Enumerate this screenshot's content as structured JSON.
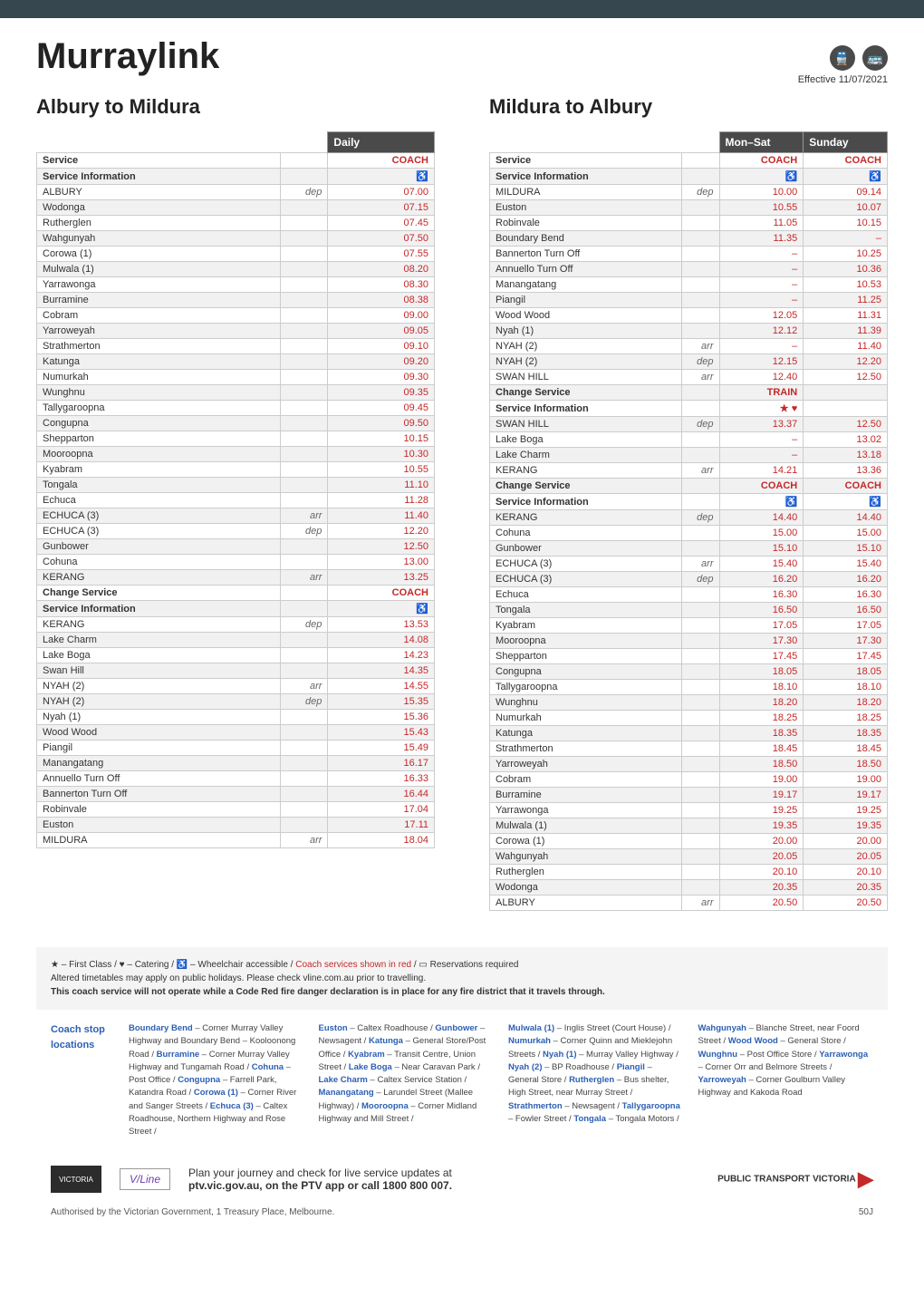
{
  "header": {
    "title": "Murraylink",
    "effective": "Effective 11/07/2021"
  },
  "section_a": {
    "title": "Albury to Mildura",
    "day_headers": [
      "Daily"
    ],
    "rows": [
      {
        "stop": "Service",
        "tag": "",
        "times": [
          "COACH"
        ],
        "bold": true
      },
      {
        "stop": "Service Information",
        "tag": "",
        "times": [
          "♿"
        ],
        "bold": true
      },
      {
        "stop": "ALBURY",
        "tag": "dep",
        "times": [
          "07.00"
        ]
      },
      {
        "stop": "Wodonga",
        "tag": "",
        "times": [
          "07.15"
        ]
      },
      {
        "stop": "Rutherglen",
        "tag": "",
        "times": [
          "07.45"
        ]
      },
      {
        "stop": "Wahgunyah",
        "tag": "",
        "times": [
          "07.50"
        ]
      },
      {
        "stop": "Corowa (1)",
        "tag": "",
        "times": [
          "07.55"
        ]
      },
      {
        "stop": "Mulwala (1)",
        "tag": "",
        "times": [
          "08.20"
        ]
      },
      {
        "stop": "Yarrawonga",
        "tag": "",
        "times": [
          "08.30"
        ]
      },
      {
        "stop": "Burramine",
        "tag": "",
        "times": [
          "08.38"
        ]
      },
      {
        "stop": "Cobram",
        "tag": "",
        "times": [
          "09.00"
        ]
      },
      {
        "stop": "Yarroweyah",
        "tag": "",
        "times": [
          "09.05"
        ]
      },
      {
        "stop": "Strathmerton",
        "tag": "",
        "times": [
          "09.10"
        ]
      },
      {
        "stop": "Katunga",
        "tag": "",
        "times": [
          "09.20"
        ]
      },
      {
        "stop": "Numurkah",
        "tag": "",
        "times": [
          "09.30"
        ]
      },
      {
        "stop": "Wunghnu",
        "tag": "",
        "times": [
          "09.35"
        ]
      },
      {
        "stop": "Tallygaroopna",
        "tag": "",
        "times": [
          "09.45"
        ]
      },
      {
        "stop": "Congupna",
        "tag": "",
        "times": [
          "09.50"
        ]
      },
      {
        "stop": "Shepparton",
        "tag": "",
        "times": [
          "10.15"
        ]
      },
      {
        "stop": "Mooroopna",
        "tag": "",
        "times": [
          "10.30"
        ]
      },
      {
        "stop": "Kyabram",
        "tag": "",
        "times": [
          "10.55"
        ]
      },
      {
        "stop": "Tongala",
        "tag": "",
        "times": [
          "11.10"
        ]
      },
      {
        "stop": "Echuca",
        "tag": "",
        "times": [
          "11.28"
        ]
      },
      {
        "stop": "ECHUCA (3)",
        "tag": "arr",
        "times": [
          "11.40"
        ]
      },
      {
        "stop": "ECHUCA (3)",
        "tag": "dep",
        "times": [
          "12.20"
        ]
      },
      {
        "stop": "Gunbower",
        "tag": "",
        "times": [
          "12.50"
        ]
      },
      {
        "stop": "Cohuna",
        "tag": "",
        "times": [
          "13.00"
        ]
      },
      {
        "stop": "KERANG",
        "tag": "arr",
        "times": [
          "13.25"
        ]
      },
      {
        "stop": "Change Service",
        "tag": "",
        "times": [
          "COACH"
        ],
        "bold": true
      },
      {
        "stop": "Service Information",
        "tag": "",
        "times": [
          "♿"
        ],
        "bold": true
      },
      {
        "stop": "KERANG",
        "tag": "dep",
        "times": [
          "13.53"
        ]
      },
      {
        "stop": "Lake Charm",
        "tag": "",
        "times": [
          "14.08"
        ]
      },
      {
        "stop": "Lake Boga",
        "tag": "",
        "times": [
          "14.23"
        ]
      },
      {
        "stop": "Swan Hill",
        "tag": "",
        "times": [
          "14.35"
        ]
      },
      {
        "stop": "NYAH (2)",
        "tag": "arr",
        "times": [
          "14.55"
        ]
      },
      {
        "stop": "NYAH (2)",
        "tag": "dep",
        "times": [
          "15.35"
        ]
      },
      {
        "stop": "Nyah (1)",
        "tag": "",
        "times": [
          "15.36"
        ]
      },
      {
        "stop": "Wood Wood",
        "tag": "",
        "times": [
          "15.43"
        ]
      },
      {
        "stop": "Piangil",
        "tag": "",
        "times": [
          "15.49"
        ]
      },
      {
        "stop": "Manangatang",
        "tag": "",
        "times": [
          "16.17"
        ]
      },
      {
        "stop": "Annuello Turn Off",
        "tag": "",
        "times": [
          "16.33"
        ]
      },
      {
        "stop": "Bannerton Turn Off",
        "tag": "",
        "times": [
          "16.44"
        ]
      },
      {
        "stop": "Robinvale",
        "tag": "",
        "times": [
          "17.04"
        ]
      },
      {
        "stop": "Euston",
        "tag": "",
        "times": [
          "17.11"
        ]
      },
      {
        "stop": "MILDURA",
        "tag": "arr",
        "times": [
          "18.04"
        ]
      }
    ]
  },
  "section_b": {
    "title": "Mildura to Albury",
    "day_headers": [
      "Mon–Sat",
      "Sunday"
    ],
    "rows": [
      {
        "stop": "Service",
        "tag": "",
        "times": [
          "COACH",
          "COACH"
        ],
        "bold": true
      },
      {
        "stop": "Service Information",
        "tag": "",
        "times": [
          "♿",
          "♿"
        ],
        "bold": true
      },
      {
        "stop": "MILDURA",
        "tag": "dep",
        "times": [
          "10.00",
          "09.14"
        ]
      },
      {
        "stop": "Euston",
        "tag": "",
        "times": [
          "10.55",
          "10.07"
        ]
      },
      {
        "stop": "Robinvale",
        "tag": "",
        "times": [
          "11.05",
          "10.15"
        ]
      },
      {
        "stop": "Boundary Bend",
        "tag": "",
        "times": [
          "11.35",
          "–"
        ]
      },
      {
        "stop": "Bannerton Turn Off",
        "tag": "",
        "times": [
          "–",
          "10.25"
        ]
      },
      {
        "stop": "Annuello Turn Off",
        "tag": "",
        "times": [
          "–",
          "10.36"
        ]
      },
      {
        "stop": "Manangatang",
        "tag": "",
        "times": [
          "–",
          "10.53"
        ]
      },
      {
        "stop": "Piangil",
        "tag": "",
        "times": [
          "–",
          "11.25"
        ]
      },
      {
        "stop": "Wood Wood",
        "tag": "",
        "times": [
          "12.05",
          "11.31"
        ]
      },
      {
        "stop": "Nyah (1)",
        "tag": "",
        "times": [
          "12.12",
          "11.39"
        ]
      },
      {
        "stop": "NYAH (2)",
        "tag": "arr",
        "times": [
          "–",
          "11.40"
        ]
      },
      {
        "stop": "NYAH (2)",
        "tag": "dep",
        "times": [
          "12.15",
          "12.20"
        ]
      },
      {
        "stop": "SWAN HILL",
        "tag": "arr",
        "times": [
          "12.40",
          "12.50"
        ]
      },
      {
        "stop": "Change Service",
        "tag": "",
        "times": [
          "TRAIN",
          ""
        ],
        "bold": true,
        "black": [
          true,
          false
        ]
      },
      {
        "stop": "Service Information",
        "tag": "",
        "times": [
          "★ ♥",
          ""
        ],
        "bold": true,
        "black": [
          true,
          false
        ]
      },
      {
        "stop": "SWAN HILL",
        "tag": "dep",
        "times": [
          "13.37",
          "12.50"
        ],
        "black": [
          true,
          false
        ]
      },
      {
        "stop": "Lake Boga",
        "tag": "",
        "times": [
          "–",
          "13.02"
        ],
        "black": [
          true,
          false
        ]
      },
      {
        "stop": "Lake Charm",
        "tag": "",
        "times": [
          "–",
          "13.18"
        ],
        "black": [
          true,
          false
        ]
      },
      {
        "stop": "KERANG",
        "tag": "arr",
        "times": [
          "14.21",
          "13.36"
        ],
        "black": [
          true,
          false
        ]
      },
      {
        "stop": "Change Service",
        "tag": "",
        "times": [
          "COACH",
          "COACH"
        ],
        "bold": true
      },
      {
        "stop": "Service Information",
        "tag": "",
        "times": [
          "♿",
          "♿"
        ],
        "bold": true
      },
      {
        "stop": "KERANG",
        "tag": "dep",
        "times": [
          "14.40",
          "14.40"
        ]
      },
      {
        "stop": "Cohuna",
        "tag": "",
        "times": [
          "15.00",
          "15.00"
        ]
      },
      {
        "stop": "Gunbower",
        "tag": "",
        "times": [
          "15.10",
          "15.10"
        ]
      },
      {
        "stop": "ECHUCA (3)",
        "tag": "arr",
        "times": [
          "15.40",
          "15.40"
        ]
      },
      {
        "stop": "ECHUCA (3)",
        "tag": "dep",
        "times": [
          "16.20",
          "16.20"
        ]
      },
      {
        "stop": "Echuca",
        "tag": "",
        "times": [
          "16.30",
          "16.30"
        ]
      },
      {
        "stop": "Tongala",
        "tag": "",
        "times": [
          "16.50",
          "16.50"
        ]
      },
      {
        "stop": "Kyabram",
        "tag": "",
        "times": [
          "17.05",
          "17.05"
        ]
      },
      {
        "stop": "Mooroopna",
        "tag": "",
        "times": [
          "17.30",
          "17.30"
        ]
      },
      {
        "stop": "Shepparton",
        "tag": "",
        "times": [
          "17.45",
          "17.45"
        ]
      },
      {
        "stop": "Congupna",
        "tag": "",
        "times": [
          "18.05",
          "18.05"
        ]
      },
      {
        "stop": "Tallygaroopna",
        "tag": "",
        "times": [
          "18.10",
          "18.10"
        ]
      },
      {
        "stop": "Wunghnu",
        "tag": "",
        "times": [
          "18.20",
          "18.20"
        ]
      },
      {
        "stop": "Numurkah",
        "tag": "",
        "times": [
          "18.25",
          "18.25"
        ]
      },
      {
        "stop": "Katunga",
        "tag": "",
        "times": [
          "18.35",
          "18.35"
        ]
      },
      {
        "stop": "Strathmerton",
        "tag": "",
        "times": [
          "18.45",
          "18.45"
        ]
      },
      {
        "stop": "Yarroweyah",
        "tag": "",
        "times": [
          "18.50",
          "18.50"
        ]
      },
      {
        "stop": "Cobram",
        "tag": "",
        "times": [
          "19.00",
          "19.00"
        ]
      },
      {
        "stop": "Burramine",
        "tag": "",
        "times": [
          "19.17",
          "19.17"
        ]
      },
      {
        "stop": "Yarrawonga",
        "tag": "",
        "times": [
          "19.25",
          "19.25"
        ]
      },
      {
        "stop": "Mulwala (1)",
        "tag": "",
        "times": [
          "19.35",
          "19.35"
        ]
      },
      {
        "stop": "Corowa (1)",
        "tag": "",
        "times": [
          "20.00",
          "20.00"
        ]
      },
      {
        "stop": "Wahgunyah",
        "tag": "",
        "times": [
          "20.05",
          "20.05"
        ]
      },
      {
        "stop": "Rutherglen",
        "tag": "",
        "times": [
          "20.10",
          "20.10"
        ]
      },
      {
        "stop": "Wodonga",
        "tag": "",
        "times": [
          "20.35",
          "20.35"
        ]
      },
      {
        "stop": "ALBURY",
        "tag": "arr",
        "times": [
          "20.50",
          "20.50"
        ]
      }
    ]
  },
  "legend": {
    "line1_parts": [
      "★ – First Class / ",
      "♥",
      " – Catering / ♿ – Wheelchair accessible / ",
      "Coach services shown in red",
      " / ▭ Reservations required"
    ],
    "line2": "Altered timetables may apply on public holidays. Please check vline.com.au prior to travelling.",
    "line3": "This coach service will not operate while a Code Red fire danger declaration is in place for any fire district that it travels through."
  },
  "coach_stops": {
    "label": "Coach stop locations",
    "cols": [
      "<b>Boundary Bend</b> – Corner Murray Valley Highway and Boundary Bend – Kooloonong Road / <b>Burramine</b> – Corner Murray Valley Highway and Tungamah Road / <b>Cohuna</b> – Post Office / <b>Congupna</b> – Farrell Park, Katandra Road / <b>Corowa (1)</b> – Corner River and Sanger Streets / <b>Echuca (3)</b> – Caltex Roadhouse, Northern Highway and Rose Street /",
      "<b>Euston</b> – Caltex Roadhouse / <b>Gunbower</b> – Newsagent / <b>Katunga</b> – General Store/Post Office / <b>Kyabram</b> – Transit Centre, Union Street / <b>Lake Boga</b> – Near Caravan Park / <b>Lake Charm</b> – Caltex Service Station / <b>Manangatang</b> – Larundel Street (Mallee Highway) / <b>Mooroopna</b> – Corner Midland Highway and Mill Street /",
      "<b>Mulwala (1)</b> – Inglis Street (Court House) / <b>Numurkah</b> – Corner Quinn and Mieklejohn Streets / <b>Nyah (1)</b> – Murray Valley Highway / <b>Nyah (2)</b> – BP Roadhouse / <b>Piangil</b> – General Store / <b>Rutherglen</b> – Bus shelter, High Street, near Murray Street / <b>Strathmerton</b> – Newsagent / <b>Tallygaroopna</b> – Fowler Street / <b>Tongala</b> – Tongala Motors /",
      "<b>Wahgunyah</b> – Blanche Street, near Foord Street / <b>Wood Wood</b> – General Store / <b>Wunghnu</b> – Post Office Store / <b>Yarrawonga</b> – Corner Orr and Belmore Streets / <b>Yarroweyah</b> – Corner Goulburn Valley Highway and Kakoda Road"
    ]
  },
  "footer": {
    "plan": "Plan your journey and check for live service updates at",
    "plan_bold": "ptv.vic.gov.au, on the PTV app or call 1800 800 007.",
    "ptv": "PUBLIC TRANSPORT VICTORIA",
    "auth": "Authorised by the Victorian Government, 1 Treasury Place, Melbourne.",
    "code": "50J"
  }
}
